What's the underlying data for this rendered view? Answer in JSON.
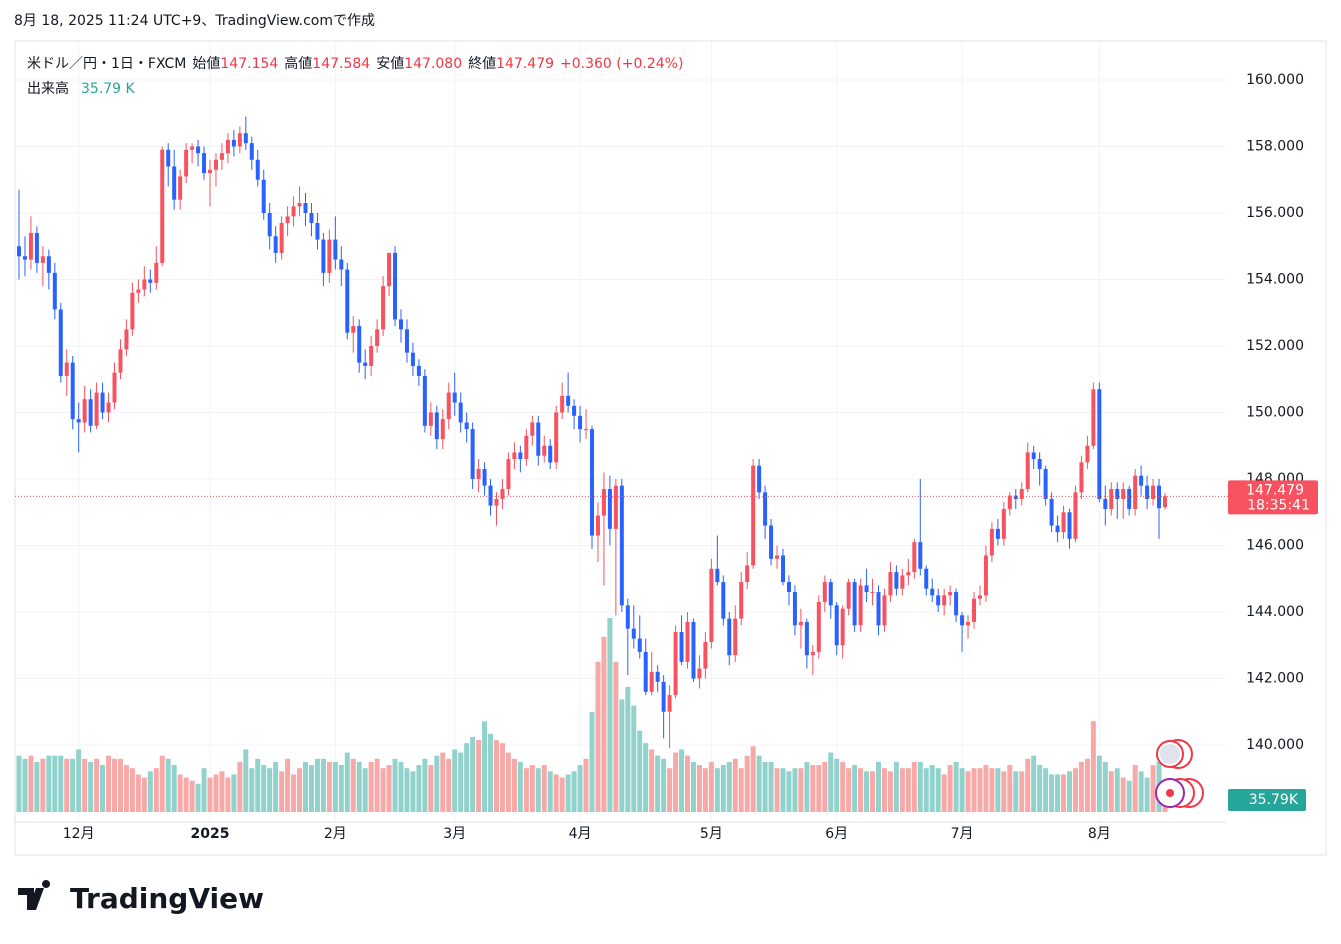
{
  "caption": "8月 18, 2025 11:24 UTC+9、TradingView.comで作成",
  "logo": "TradingView",
  "chart_data": {
    "type": "candlestick",
    "symbol": "米ドル／円・1日・FXCM",
    "fields": [
      {
        "label": "始値",
        "value": "147.154"
      },
      {
        "label": "高値",
        "value": "147.584"
      },
      {
        "label": "安値",
        "value": "147.080"
      },
      {
        "label": "終値",
        "value": "147.479"
      }
    ],
    "change": "+0.360 (+0.24%)",
    "volume_title": "出来高",
    "volume_text": "35.79 K",
    "volume_axis_label": "35.79K",
    "countdown": "18:35:41",
    "up_color": "#f7525f",
    "down_color": "#2962ff",
    "volume_up_color": "#f7a9a7",
    "volume_down_color": "#92d2cc",
    "ylim": [
      138.0,
      161.0
    ],
    "yticks": [
      {
        "value": 140,
        "label": "140.000"
      },
      {
        "value": 142,
        "label": "142.000"
      },
      {
        "value": 144,
        "label": "144.000"
      },
      {
        "value": 146,
        "label": "146.000"
      },
      {
        "value": 148,
        "label": "148.000"
      },
      {
        "value": 150,
        "label": "150.000"
      },
      {
        "value": 152,
        "label": "152.000"
      },
      {
        "value": 154,
        "label": "154.000"
      },
      {
        "value": 156,
        "label": "156.000"
      },
      {
        "value": 158,
        "label": "158.000"
      },
      {
        "value": 160,
        "label": "160.000"
      }
    ],
    "xticks": [
      {
        "value": 10,
        "label": "12月"
      },
      {
        "value": 32,
        "label": "2025"
      },
      {
        "value": 53,
        "label": "2月"
      },
      {
        "value": 73,
        "label": "3月"
      },
      {
        "value": 94,
        "label": "4月"
      },
      {
        "value": 116,
        "label": "5月"
      },
      {
        "value": 137,
        "label": "6月"
      },
      {
        "value": 158,
        "label": "7月"
      },
      {
        "value": 181,
        "label": "8月"
      }
    ],
    "grid": true,
    "ohlc": [
      [
        155.0,
        156.7,
        154.0,
        154.7
      ],
      [
        154.7,
        155.3,
        154.1,
        154.6
      ],
      [
        154.6,
        155.9,
        154.3,
        155.4
      ],
      [
        155.4,
        155.6,
        154.2,
        154.5
      ],
      [
        154.5,
        155.0,
        153.8,
        154.7
      ],
      [
        154.7,
        154.9,
        153.7,
        154.2
      ],
      [
        154.2,
        154.5,
        152.8,
        153.1
      ],
      [
        153.1,
        153.3,
        150.9,
        151.1
      ],
      [
        151.1,
        151.9,
        150.5,
        151.5
      ],
      [
        151.5,
        151.7,
        149.5,
        149.8
      ],
      [
        149.8,
        150.3,
        148.8,
        149.7
      ],
      [
        149.7,
        150.8,
        149.4,
        150.4
      ],
      [
        150.4,
        150.7,
        149.4,
        149.6
      ],
      [
        149.6,
        150.9,
        149.5,
        150.6
      ],
      [
        150.6,
        150.9,
        149.8,
        150.0
      ],
      [
        150.0,
        150.6,
        149.7,
        150.3
      ],
      [
        150.3,
        151.5,
        150.1,
        151.2
      ],
      [
        151.2,
        152.2,
        151.0,
        151.9
      ],
      [
        151.9,
        152.8,
        151.7,
        152.5
      ],
      [
        152.5,
        153.9,
        152.3,
        153.6
      ],
      [
        153.6,
        154.0,
        153.3,
        153.7
      ],
      [
        153.7,
        154.4,
        153.5,
        154.0
      ],
      [
        154.0,
        154.3,
        153.6,
        153.9
      ],
      [
        153.9,
        155.0,
        153.7,
        154.5
      ],
      [
        154.5,
        158.0,
        154.4,
        157.9
      ],
      [
        157.9,
        158.1,
        156.8,
        157.4
      ],
      [
        157.4,
        157.9,
        156.1,
        156.4
      ],
      [
        156.4,
        157.3,
        156.1,
        157.1
      ],
      [
        157.1,
        158.1,
        156.9,
        157.9
      ],
      [
        157.9,
        158.1,
        157.5,
        158.0
      ],
      [
        158.0,
        158.2,
        157.4,
        157.8
      ],
      [
        157.8,
        158.0,
        157.0,
        157.2
      ],
      [
        157.2,
        157.6,
        156.2,
        157.3
      ],
      [
        157.3,
        157.8,
        156.8,
        157.6
      ],
      [
        157.6,
        158.1,
        157.3,
        157.8
      ],
      [
        157.8,
        158.4,
        157.5,
        158.2
      ],
      [
        158.2,
        158.5,
        157.7,
        158.0
      ],
      [
        158.0,
        158.6,
        157.8,
        158.4
      ],
      [
        158.4,
        158.9,
        157.9,
        158.1
      ],
      [
        158.1,
        158.3,
        157.3,
        157.6
      ],
      [
        157.6,
        157.9,
        156.8,
        157.0
      ],
      [
        157.0,
        157.3,
        155.8,
        156.0
      ],
      [
        156.0,
        156.3,
        154.9,
        155.3
      ],
      [
        155.3,
        155.6,
        154.5,
        154.8
      ],
      [
        154.8,
        155.9,
        154.6,
        155.7
      ],
      [
        155.7,
        156.2,
        155.3,
        155.9
      ],
      [
        155.9,
        156.5,
        155.6,
        156.2
      ],
      [
        156.2,
        156.8,
        155.9,
        156.3
      ],
      [
        156.3,
        156.6,
        155.6,
        156.0
      ],
      [
        156.0,
        156.3,
        155.3,
        155.7
      ],
      [
        155.7,
        156.0,
        154.9,
        155.2
      ],
      [
        155.2,
        155.4,
        153.8,
        154.2
      ],
      [
        154.2,
        155.5,
        153.9,
        155.2
      ],
      [
        155.2,
        155.9,
        154.3,
        154.6
      ],
      [
        154.6,
        155.0,
        153.8,
        154.3
      ],
      [
        154.3,
        154.5,
        152.2,
        152.4
      ],
      [
        152.4,
        152.9,
        151.8,
        152.6
      ],
      [
        152.6,
        152.8,
        151.2,
        151.5
      ],
      [
        151.5,
        151.9,
        151.0,
        151.4
      ],
      [
        151.4,
        152.3,
        151.1,
        152.0
      ],
      [
        152.0,
        152.8,
        151.8,
        152.5
      ],
      [
        152.5,
        154.1,
        152.3,
        153.8
      ],
      [
        153.8,
        154.8,
        153.5,
        154.8
      ],
      [
        154.8,
        155.0,
        152.6,
        152.8
      ],
      [
        152.8,
        153.1,
        152.1,
        152.5
      ],
      [
        152.5,
        152.8,
        151.5,
        151.8
      ],
      [
        151.8,
        152.1,
        151.1,
        151.4
      ],
      [
        151.4,
        151.6,
        150.8,
        151.1
      ],
      [
        151.1,
        151.3,
        149.4,
        149.6
      ],
      [
        149.6,
        150.3,
        149.3,
        150.0
      ],
      [
        150.0,
        150.2,
        148.9,
        149.2
      ],
      [
        149.2,
        150.1,
        148.9,
        149.8
      ],
      [
        149.8,
        150.9,
        149.5,
        150.6
      ],
      [
        150.6,
        151.2,
        149.9,
        150.3
      ],
      [
        150.3,
        150.6,
        149.4,
        149.7
      ],
      [
        149.7,
        150.0,
        149.1,
        149.5
      ],
      [
        149.5,
        149.7,
        147.7,
        148.0
      ],
      [
        148.0,
        148.6,
        147.6,
        148.3
      ],
      [
        148.3,
        148.5,
        147.5,
        147.8
      ],
      [
        147.8,
        148.0,
        146.9,
        147.2
      ],
      [
        147.2,
        147.6,
        146.6,
        147.4
      ],
      [
        147.4,
        148.0,
        147.1,
        147.7
      ],
      [
        147.7,
        148.8,
        147.5,
        148.6
      ],
      [
        148.6,
        149.1,
        148.3,
        148.8
      ],
      [
        148.8,
        149.0,
        148.2,
        148.6
      ],
      [
        148.6,
        149.5,
        148.4,
        149.3
      ],
      [
        149.3,
        149.9,
        149.0,
        149.7
      ],
      [
        149.7,
        149.9,
        148.4,
        148.7
      ],
      [
        148.7,
        149.3,
        148.5,
        149.0
      ],
      [
        149.0,
        149.2,
        148.3,
        148.5
      ],
      [
        148.5,
        150.2,
        148.3,
        150.0
      ],
      [
        150.0,
        150.9,
        149.8,
        150.5
      ],
      [
        150.5,
        151.2,
        150.0,
        150.2
      ],
      [
        150.2,
        150.4,
        149.5,
        149.9
      ],
      [
        149.9,
        150.2,
        149.1,
        149.5
      ],
      [
        149.5,
        150.1,
        149.2,
        149.5
      ],
      [
        149.5,
        149.6,
        145.9,
        146.3
      ],
      [
        146.3,
        147.3,
        145.5,
        146.9
      ],
      [
        146.9,
        148.2,
        144.8,
        147.7
      ],
      [
        147.7,
        148.1,
        146.0,
        146.5
      ],
      [
        146.5,
        148.0,
        143.9,
        147.8
      ],
      [
        147.8,
        148.0,
        144.0,
        144.2
      ],
      [
        144.2,
        144.4,
        142.1,
        143.5
      ],
      [
        143.5,
        144.2,
        142.9,
        143.2
      ],
      [
        143.2,
        143.9,
        142.6,
        142.8
      ],
      [
        142.8,
        143.2,
        141.5,
        141.6
      ],
      [
        141.6,
        142.8,
        141.5,
        142.2
      ],
      [
        142.2,
        142.4,
        141.6,
        141.9
      ],
      [
        141.9,
        142.1,
        140.2,
        141.0
      ],
      [
        141.0,
        141.8,
        139.9,
        141.5
      ],
      [
        141.5,
        143.6,
        141.4,
        143.4
      ],
      [
        143.4,
        143.9,
        142.4,
        142.5
      ],
      [
        142.5,
        144.0,
        142.3,
        143.7
      ],
      [
        143.7,
        143.8,
        141.9,
        142.0
      ],
      [
        142.0,
        142.7,
        141.7,
        142.3
      ],
      [
        142.3,
        143.4,
        142.0,
        143.1
      ],
      [
        143.1,
        145.6,
        142.9,
        145.3
      ],
      [
        145.3,
        146.3,
        144.8,
        144.9
      ],
      [
        144.9,
        145.1,
        143.6,
        143.8
      ],
      [
        143.8,
        144.0,
        142.4,
        142.7
      ],
      [
        142.7,
        144.2,
        142.5,
        143.8
      ],
      [
        143.8,
        145.2,
        143.6,
        144.9
      ],
      [
        144.9,
        145.8,
        144.7,
        145.4
      ],
      [
        145.4,
        148.6,
        145.3,
        148.4
      ],
      [
        148.4,
        148.6,
        147.4,
        147.6
      ],
      [
        147.6,
        147.8,
        146.2,
        146.6
      ],
      [
        146.6,
        146.8,
        145.4,
        145.6
      ],
      [
        145.6,
        146.0,
        145.3,
        145.7
      ],
      [
        145.7,
        145.9,
        144.8,
        144.9
      ],
      [
        144.9,
        145.1,
        144.2,
        144.6
      ],
      [
        144.6,
        144.8,
        143.3,
        143.6
      ],
      [
        143.6,
        144.1,
        142.9,
        143.7
      ],
      [
        143.7,
        143.8,
        142.3,
        142.7
      ],
      [
        142.7,
        143.0,
        142.1,
        142.8
      ],
      [
        142.8,
        144.5,
        142.6,
        144.3
      ],
      [
        144.3,
        145.1,
        144.0,
        144.9
      ],
      [
        144.9,
        145.0,
        143.8,
        144.2
      ],
      [
        144.2,
        144.3,
        142.7,
        143.0
      ],
      [
        143.0,
        144.2,
        142.6,
        144.1
      ],
      [
        144.1,
        145.0,
        143.9,
        144.9
      ],
      [
        144.9,
        145.0,
        143.4,
        143.6
      ],
      [
        143.6,
        145.0,
        143.4,
        144.8
      ],
      [
        144.8,
        145.3,
        144.3,
        144.6
      ],
      [
        144.6,
        145.0,
        144.2,
        144.6
      ],
      [
        144.6,
        144.8,
        143.3,
        143.6
      ],
      [
        143.6,
        144.7,
        143.4,
        144.5
      ],
      [
        144.5,
        145.5,
        144.3,
        145.2
      ],
      [
        145.2,
        145.4,
        144.5,
        144.7
      ],
      [
        144.7,
        145.3,
        144.5,
        145.1
      ],
      [
        145.1,
        145.6,
        144.8,
        145.2
      ],
      [
        145.2,
        146.2,
        145.0,
        146.1
      ],
      [
        146.1,
        148.0,
        145.1,
        145.3
      ],
      [
        145.3,
        145.4,
        144.5,
        144.7
      ],
      [
        144.7,
        145.0,
        144.3,
        144.5
      ],
      [
        144.5,
        144.7,
        144.0,
        144.2
      ],
      [
        144.2,
        144.7,
        143.9,
        144.5
      ],
      [
        144.5,
        144.8,
        144.2,
        144.6
      ],
      [
        144.6,
        144.7,
        143.7,
        143.9
      ],
      [
        143.9,
        144.0,
        142.8,
        143.6
      ],
      [
        143.6,
        143.9,
        143.2,
        143.7
      ],
      [
        143.7,
        144.6,
        143.5,
        144.4
      ],
      [
        144.4,
        144.8,
        144.2,
        144.5
      ],
      [
        144.5,
        146.0,
        144.3,
        145.7
      ],
      [
        145.7,
        146.7,
        145.5,
        146.5
      ],
      [
        146.5,
        146.8,
        146.0,
        146.2
      ],
      [
        146.2,
        147.3,
        146.0,
        147.1
      ],
      [
        147.1,
        147.6,
        146.9,
        147.5
      ],
      [
        147.5,
        147.7,
        147.1,
        147.4
      ],
      [
        147.4,
        147.9,
        147.2,
        147.7
      ],
      [
        147.7,
        149.1,
        147.6,
        148.8
      ],
      [
        148.8,
        149.0,
        148.3,
        148.6
      ],
      [
        148.6,
        148.8,
        147.8,
        148.3
      ],
      [
        148.3,
        148.4,
        147.2,
        147.4
      ],
      [
        147.4,
        147.6,
        146.4,
        146.6
      ],
      [
        146.6,
        146.9,
        146.1,
        146.4
      ],
      [
        146.4,
        147.2,
        146.2,
        147.0
      ],
      [
        147.0,
        147.1,
        145.9,
        146.2
      ],
      [
        146.2,
        147.8,
        146.1,
        147.6
      ],
      [
        147.6,
        148.7,
        147.4,
        148.5
      ],
      [
        148.5,
        149.3,
        148.3,
        149.0
      ],
      [
        149.0,
        150.9,
        148.9,
        150.7
      ],
      [
        150.7,
        150.9,
        147.3,
        147.4
      ],
      [
        147.4,
        147.8,
        146.6,
        147.1
      ],
      [
        147.1,
        147.9,
        146.9,
        147.7
      ],
      [
        147.7,
        147.9,
        146.8,
        147.4
      ],
      [
        147.4,
        147.9,
        146.8,
        147.7
      ],
      [
        147.7,
        147.8,
        146.9,
        147.1
      ],
      [
        147.1,
        148.3,
        146.9,
        148.1
      ],
      [
        148.1,
        148.4,
        147.5,
        147.8
      ],
      [
        147.8,
        148.1,
        147.1,
        147.4
      ],
      [
        147.4,
        148.0,
        147.2,
        147.8
      ],
      [
        147.8,
        148.0,
        146.2,
        147.119
      ],
      [
        147.154,
        147.584,
        147.08,
        147.479
      ]
    ],
    "volume": [
      90,
      85,
      90,
      80,
      85,
      90,
      90,
      90,
      85,
      85,
      100,
      85,
      80,
      85,
      75,
      90,
      85,
      85,
      75,
      70,
      60,
      55,
      65,
      70,
      90,
      85,
      75,
      60,
      55,
      50,
      45,
      70,
      55,
      60,
      65,
      55,
      60,
      80,
      100,
      70,
      85,
      75,
      70,
      80,
      65,
      85,
      60,
      70,
      80,
      75,
      85,
      85,
      80,
      80,
      75,
      95,
      85,
      80,
      70,
      80,
      85,
      70,
      75,
      85,
      80,
      70,
      65,
      75,
      85,
      75,
      90,
      95,
      85,
      100,
      95,
      110,
      120,
      115,
      145,
      125,
      115,
      110,
      95,
      85,
      80,
      70,
      75,
      70,
      75,
      65,
      60,
      55,
      60,
      65,
      75,
      85,
      160,
      240,
      280,
      310,
      240,
      180,
      200,
      170,
      130,
      110,
      100,
      90,
      85,
      70,
      95,
      100,
      90,
      80,
      75,
      70,
      80,
      70,
      75,
      80,
      85,
      70,
      90,
      105,
      90,
      80,
      80,
      70,
      70,
      65,
      70,
      70,
      80,
      75,
      75,
      80,
      95,
      85,
      80,
      70,
      75,
      70,
      65,
      65,
      80,
      70,
      65,
      80,
      70,
      70,
      80,
      80,
      70,
      75,
      70,
      60,
      75,
      80,
      70,
      65,
      70,
      70,
      75,
      70,
      70,
      65,
      75,
      65,
      65,
      85,
      90,
      75,
      70,
      60,
      60,
      60,
      65,
      70,
      80,
      85,
      145,
      90,
      80,
      65,
      70,
      55,
      50,
      75,
      65,
      55,
      75,
      80,
      35.79
    ]
  }
}
